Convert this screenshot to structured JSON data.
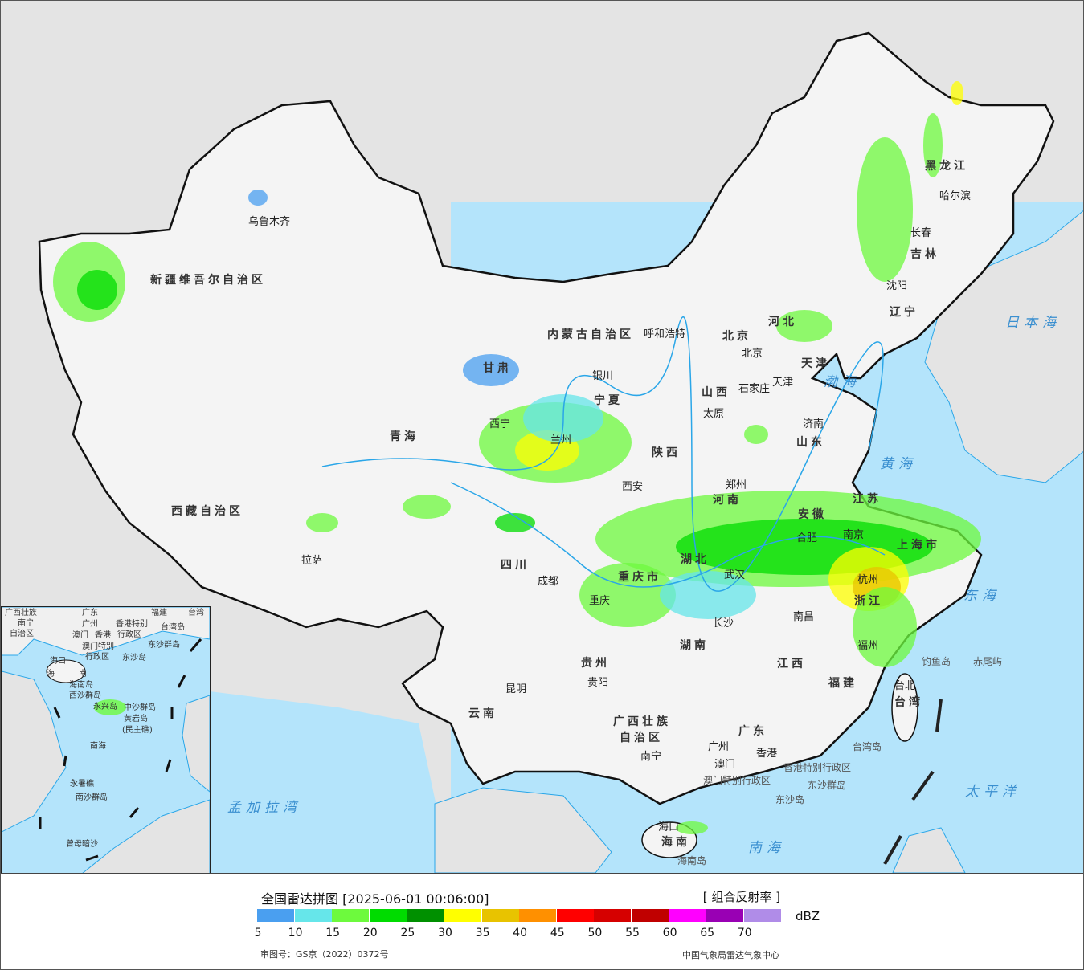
{
  "map": {
    "product_type": "national radar composite map",
    "colors": {
      "land_outside": "#e4e4e4",
      "sea": "#b4e4fb",
      "china_land": "#f4f4f4",
      "border": "#111111",
      "river": "#2aa6e8"
    },
    "province_labels": [
      "新疆维吾尔自治区",
      "西藏自治区",
      "青海",
      "甘肃",
      "内蒙古自治区",
      "黑龙江",
      "吉林",
      "辽宁",
      "河北",
      "山西",
      "山东",
      "陕西",
      "河南",
      "江苏",
      "安徽",
      "湖北",
      "四川",
      "重庆市",
      "湖南",
      "江西",
      "浙江",
      "福建",
      "贵州",
      "云南",
      "广西壮族",
      "自治区",
      "广东",
      "海南",
      "台湾",
      "宁夏",
      "上海市",
      "天津",
      "北京"
    ],
    "city_labels": [
      "乌鲁木齐",
      "拉萨",
      "西宁",
      "银川",
      "呼和浩特",
      "哈尔滨",
      "长春",
      "沈阳",
      "北京",
      "天津",
      "石家庄",
      "太原",
      "济南",
      "郑州",
      "西安",
      "合肥",
      "南京",
      "杭州",
      "武汉",
      "成都",
      "重庆",
      "长沙",
      "南昌",
      "福州",
      "台北",
      "贵阳",
      "昆明",
      "南宁",
      "广州",
      "香港",
      "澳门",
      "海口",
      "兰州"
    ],
    "sea_labels": [
      "日本海",
      "渤海",
      "黄海",
      "东海",
      "太平洋",
      "南海",
      "孟加拉湾"
    ],
    "island_labels": [
      "钓鱼岛",
      "赤尾屿",
      "台湾岛",
      "东沙群岛",
      "东沙岛",
      "海南岛",
      "香港特别行政区",
      "澳门特别行政区"
    ],
    "inset": {
      "labels": [
        "广西壮族",
        "自治区",
        "南宁",
        "广东",
        "广州",
        "澳门",
        "香港",
        "香港特别",
        "行政区",
        "澳门特别",
        "行政区",
        "台湾",
        "台湾岛",
        "东沙群岛",
        "东沙岛",
        "海口",
        "海",
        "南",
        "海南岛",
        "西沙群岛",
        "永兴岛",
        "中沙群岛",
        "黄岩岛",
        "(民主礁)",
        "南海",
        "永暑礁",
        "南沙群岛",
        "曾母暗沙",
        "福建"
      ]
    }
  },
  "legend": {
    "title": "全国雷达拼图 [2025-06-01 00:06:00]",
    "product": "[ 组合反射率 ]",
    "unit": "dBZ",
    "ticks": [
      "5",
      "10",
      "15",
      "20",
      "25",
      "30",
      "35",
      "40",
      "45",
      "50",
      "55",
      "60",
      "65",
      "70"
    ],
    "colors": [
      "#4a9ff0",
      "#66e6ea",
      "#6dfa3d",
      "#00dc00",
      "#009000",
      "#ffff00",
      "#e8c300",
      "#ff9000",
      "#ff0000",
      "#d60000",
      "#c00000",
      "#ff00ff",
      "#9900b4",
      "#b08ce8"
    ],
    "approval": "审图号：GS京（2022）0372号",
    "agency": "中国气象局雷达气象中心"
  }
}
